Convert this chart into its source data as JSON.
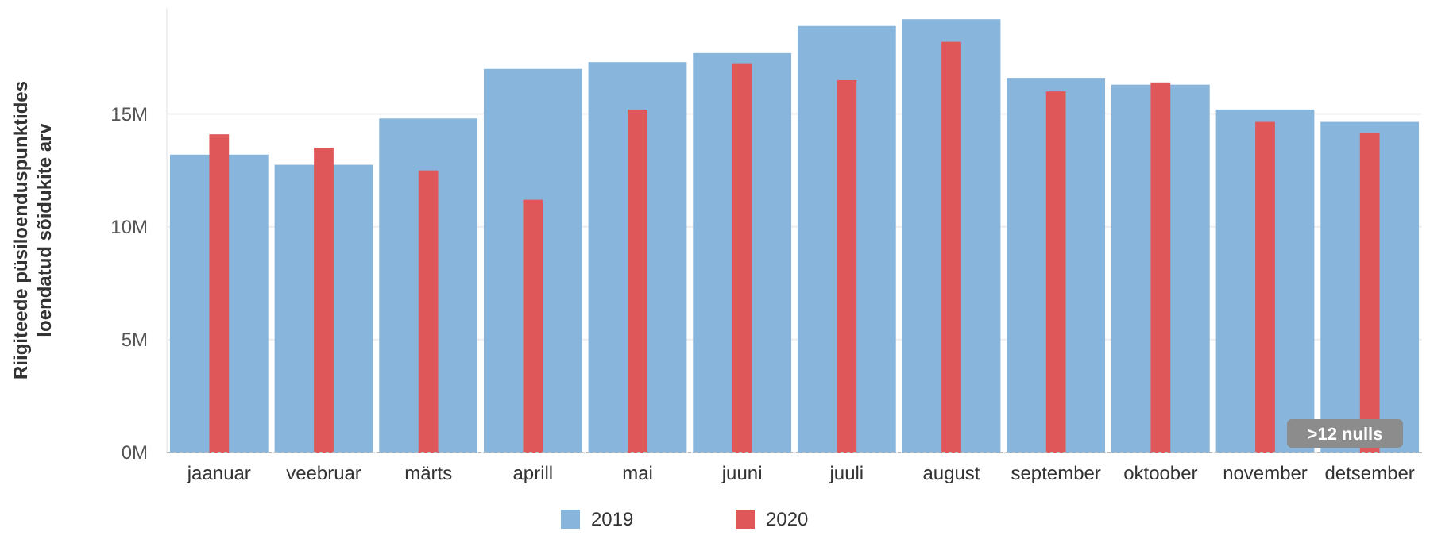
{
  "chart_data": {
    "type": "bar",
    "ylabel": "Riigiteede püsiloenduspunktides loendatud sõidukite arv",
    "categories": [
      "jaanuar",
      "veebruar",
      "märts",
      "aprill",
      "mai",
      "juuni",
      "juuli",
      "august",
      "september",
      "oktoober",
      "november",
      "detsember"
    ],
    "series": [
      {
        "name": "2019",
        "color": "#88b5dc",
        "values": [
          13.2,
          12.75,
          14.8,
          17.0,
          17.3,
          17.7,
          18.9,
          19.2,
          16.6,
          16.3,
          15.2,
          14.65
        ]
      },
      {
        "name": "2020",
        "color": "#e05759",
        "values": [
          14.1,
          13.5,
          12.5,
          11.2,
          15.2,
          17.25,
          16.5,
          18.2,
          16.0,
          16.4,
          14.65,
          14.15
        ]
      }
    ],
    "ylim": [
      0,
      19.7
    ],
    "yticks": [
      {
        "value": 0,
        "label": "0M"
      },
      {
        "value": 5,
        "label": "5M"
      },
      {
        "value": 10,
        "label": "10M"
      },
      {
        "value": 15,
        "label": "15M"
      }
    ],
    "grid": "y",
    "legend": "bottom",
    "annotations": [
      ">12 nulls"
    ]
  }
}
